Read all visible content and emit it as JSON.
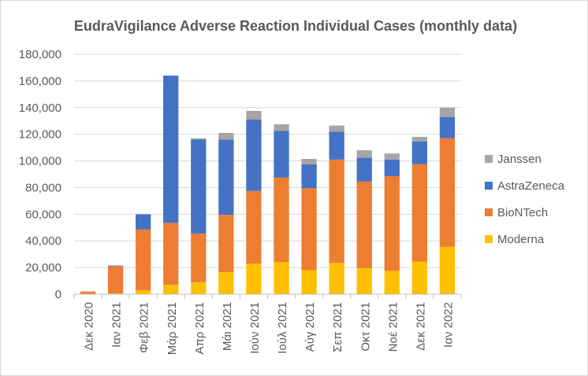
{
  "chart_data": {
    "type": "bar",
    "stacked": true,
    "title": "EudraVigilance Adverse Reaction Individual Cases (monthly data)",
    "xlabel": "",
    "ylabel": "",
    "ylim": [
      0,
      180000
    ],
    "y_ticks": [
      0,
      20000,
      40000,
      60000,
      80000,
      100000,
      120000,
      140000,
      160000,
      180000
    ],
    "y_tick_labels": [
      "0",
      "20,000",
      "40,000",
      "60,000",
      "80,000",
      "100,000",
      "120,000",
      "140,000",
      "160,000",
      "180,000"
    ],
    "grid": true,
    "legend_position": "right",
    "categories": [
      "Δεκ 2020",
      "Ιαν 2021",
      "Φεβ 2021",
      "Μάρ 2021",
      "Απρ 2021",
      "Μάι 2021",
      "Ιούν 2021",
      "Ιούλ 2021",
      "Αύγ 2021",
      "Σεπ 2021",
      "Οκτ 2021",
      "Νοέ 2021",
      "Δεκ 2021",
      "Ιαν 2022"
    ],
    "series": [
      {
        "name": "Moderna",
        "color": "#ffc000",
        "values": [
          0,
          500,
          3000,
          7000,
          9000,
          16500,
          23000,
          24000,
          18000,
          23500,
          19500,
          17500,
          24500,
          35500
        ]
      },
      {
        "name": "BioNTech",
        "color": "#ed7d31",
        "values": [
          2000,
          20500,
          45500,
          46500,
          36500,
          43000,
          54500,
          63500,
          61500,
          77500,
          65000,
          71000,
          73000,
          81500
        ]
      },
      {
        "name": "AstraZeneca",
        "color": "#4472c4",
        "values": [
          0,
          500,
          11500,
          110500,
          70500,
          56500,
          53500,
          35000,
          18000,
          21000,
          18000,
          12500,
          17000,
          16000
        ]
      },
      {
        "name": "Janssen",
        "color": "#a5a5a5",
        "values": [
          0,
          0,
          0,
          0,
          1000,
          5000,
          6500,
          5000,
          4000,
          4500,
          5500,
          4500,
          3500,
          7000
        ]
      }
    ]
  }
}
